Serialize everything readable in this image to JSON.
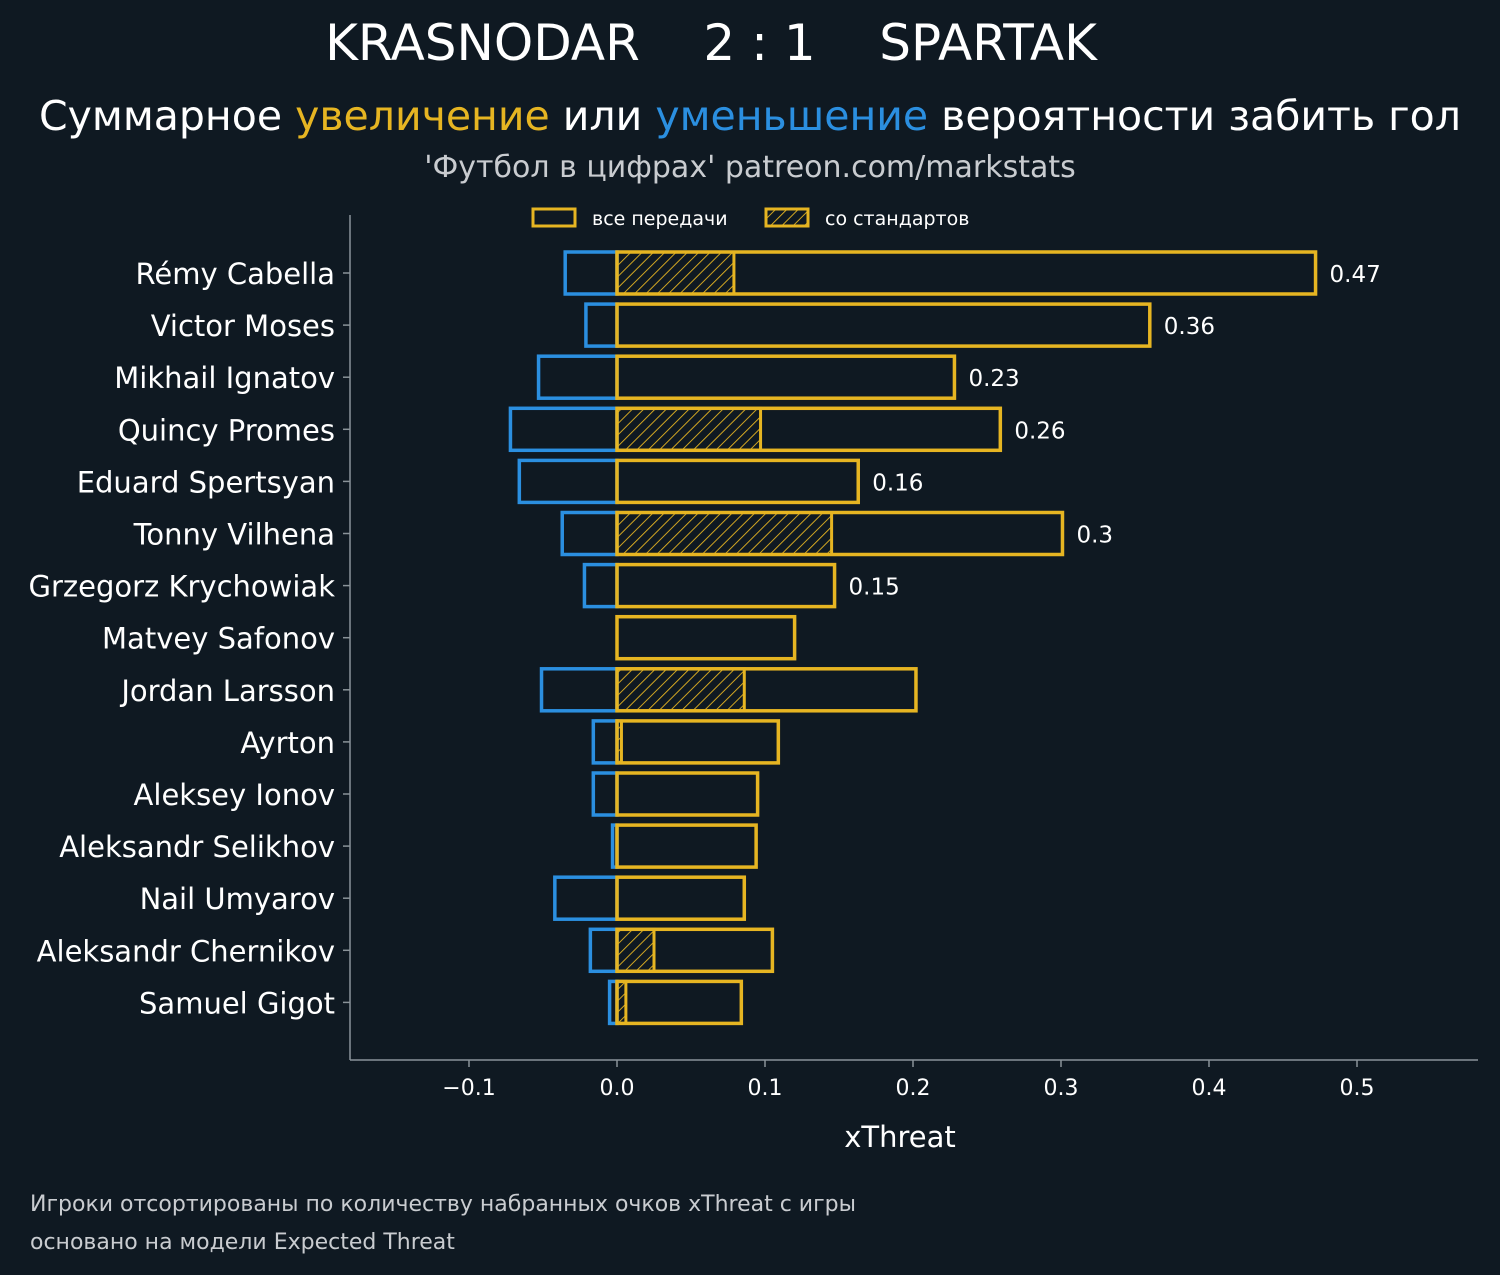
{
  "header": {
    "title": "KRASNODAR    2 : 1    SPARTAK",
    "subtitle_prefix": "Суммарное ",
    "subtitle_increase": "увеличение",
    "subtitle_middle": " или ",
    "subtitle_decrease": "уменьшение",
    "subtitle_suffix": " вероятности забить гол",
    "source": "'Футбол в цифрах' patreon.com/markstats"
  },
  "footnote": {
    "line1": "Игроки отсортированы по количеству набранных очков xThreat с игры",
    "line2": "основано на модели Expected Threat"
  },
  "colors": {
    "background": "#0f1922",
    "increase": "#e6b522",
    "decrease": "#2b8fe0",
    "axis": "#8a9399",
    "text": "#ffffff"
  },
  "chart_data": {
    "type": "bar",
    "orientation": "horizontal",
    "xlabel": "xThreat",
    "xlim": [
      -0.18,
      0.58
    ],
    "xticks": [
      -0.1,
      0.0,
      0.1,
      0.2,
      0.3,
      0.4,
      0.5
    ],
    "xtick_labels": [
      "−0.1",
      "0.0",
      "0.1",
      "0.2",
      "0.3",
      "0.4",
      "0.5"
    ],
    "legend": {
      "position": "top-center",
      "all_passes": "все передачи",
      "set_pieces": "со стандартов"
    },
    "categories": [
      "Rémy Cabella",
      "Victor Moses",
      "Mikhail Ignatov",
      "Quincy Promes",
      "Eduard Spertsyan",
      "Tonny Vilhena",
      "Grzegorz Krychowiak",
      "Matvey Safonov",
      "Jordan Larsson",
      "Ayrton",
      "Aleksey Ionov",
      "Aleksandr Selikhov",
      "Nail Umyarov",
      "Aleksandr Chernikov",
      "Samuel Gigot"
    ],
    "series": [
      {
        "name": "positive",
        "values": [
          0.472,
          0.36,
          0.228,
          0.259,
          0.163,
          0.301,
          0.147,
          0.12,
          0.202,
          0.109,
          0.095,
          0.094,
          0.086,
          0.105,
          0.084
        ]
      },
      {
        "name": "negative",
        "values": [
          -0.035,
          -0.021,
          -0.053,
          -0.072,
          -0.066,
          -0.037,
          -0.022,
          0,
          -0.051,
          -0.016,
          -0.016,
          -0.003,
          -0.042,
          -0.018,
          -0.005
        ]
      },
      {
        "name": "set_pieces",
        "values": [
          0.079,
          0,
          0,
          0.097,
          0,
          0.145,
          0,
          0,
          0.086,
          0.003,
          0,
          0,
          0,
          0.025,
          0.006
        ]
      }
    ],
    "value_labels": [
      "0.47",
      "0.36",
      "0.23",
      "0.26",
      "0.16",
      "0.3",
      "0.15",
      "",
      "",
      "",
      "",
      "",
      "",
      "",
      ""
    ]
  }
}
